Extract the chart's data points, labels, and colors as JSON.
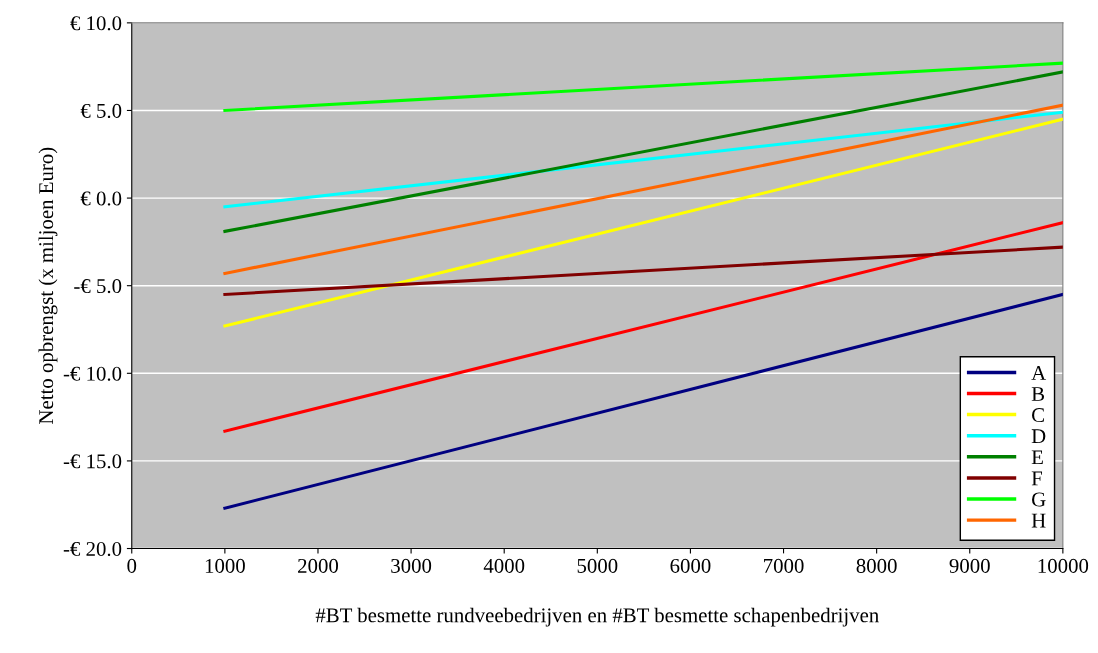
{
  "chart_data": {
    "type": "line",
    "xlabel": "#BT besmette rundveebedrijven en #BT besmette schapenbedrijven",
    "ylabel": "Netto opbrengst (x miljoen Euro)",
    "x": [
      1000,
      10000
    ],
    "series": [
      {
        "name": "A",
        "color": "#000080",
        "values": [
          -17.7,
          -5.5
        ]
      },
      {
        "name": "B",
        "color": "#ff0000",
        "values": [
          -13.3,
          -1.4
        ]
      },
      {
        "name": "C",
        "color": "#ffff00",
        "values": [
          -7.3,
          4.5
        ]
      },
      {
        "name": "D",
        "color": "#00ffff",
        "values": [
          -0.5,
          4.9
        ]
      },
      {
        "name": "E",
        "color": "#008000",
        "values": [
          -1.9,
          7.2
        ]
      },
      {
        "name": "F",
        "color": "#800000",
        "values": [
          -5.5,
          -2.8
        ]
      },
      {
        "name": "G",
        "color": "#00ff00",
        "values": [
          5.0,
          7.7
        ]
      },
      {
        "name": "H",
        "color": "#ff6600",
        "values": [
          -4.3,
          5.3
        ]
      }
    ],
    "xlim": [
      0,
      10000
    ],
    "xticks": [
      0,
      1000,
      2000,
      3000,
      4000,
      5000,
      6000,
      7000,
      8000,
      9000,
      10000
    ],
    "ylim": [
      -20,
      10
    ],
    "yticks": [
      {
        "value": -20,
        "label": "-€ 20.0"
      },
      {
        "value": -15,
        "label": "-€ 15.0"
      },
      {
        "value": -10,
        "label": "-€ 10.0"
      },
      {
        "value": -5,
        "label": "-€ 5.0"
      },
      {
        "value": 0,
        "label": "€ 0.0"
      },
      {
        "value": 5,
        "label": "€ 5.0"
      },
      {
        "value": 10,
        "label": "€ 10.0"
      }
    ],
    "grid": "y",
    "legend": "bottom right",
    "marker": "none",
    "line_style": "solid"
  }
}
